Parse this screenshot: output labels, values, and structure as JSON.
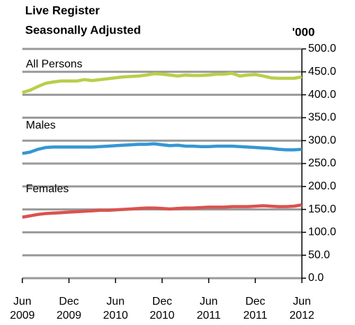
{
  "chart_data": {
    "type": "line",
    "title": "Live Register",
    "subtitle": "Seasonally Adjusted",
    "y_unit": "'000",
    "categories": [
      "Jun 2009",
      null,
      null,
      null,
      null,
      null,
      "Dec 2009",
      null,
      null,
      null,
      null,
      null,
      "Jun 2010",
      null,
      null,
      null,
      null,
      null,
      "Dec 2010",
      null,
      null,
      null,
      null,
      null,
      "Jun 2011",
      null,
      null,
      null,
      null,
      null,
      "Dec 2011",
      null,
      null,
      null,
      null,
      null,
      "Jun 2012"
    ],
    "series": [
      {
        "name": "All Persons",
        "color": "#b8cf4a",
        "values": [
          405,
          410,
          418,
          425,
          428,
          430,
          430,
          430,
          433,
          431,
          433,
          435,
          437,
          439,
          440,
          441,
          443,
          446,
          445,
          443,
          441,
          443,
          442,
          442,
          443,
          445,
          445,
          447,
          441,
          443,
          444,
          441,
          437,
          436,
          436,
          436,
          439
        ]
      },
      {
        "name": "Males",
        "color": "#3597d3",
        "values": [
          272,
          275,
          281,
          285,
          286,
          286,
          286,
          286,
          286,
          286,
          287,
          288,
          289,
          290,
          291,
          292,
          292,
          293,
          291,
          289,
          290,
          288,
          288,
          287,
          287,
          288,
          288,
          288,
          287,
          286,
          285,
          284,
          283,
          281,
          280,
          280,
          281
        ]
      },
      {
        "name": "Females",
        "color": "#d9534f",
        "values": [
          133,
          136,
          139,
          141,
          142,
          143,
          144,
          145,
          146,
          147,
          148,
          148,
          149,
          150,
          151,
          152,
          153,
          153,
          152,
          151,
          152,
          153,
          153,
          154,
          155,
          155,
          155,
          156,
          156,
          156,
          157,
          158,
          157,
          156,
          156,
          157,
          160
        ]
      }
    ],
    "ylim": [
      0,
      500
    ],
    "yticks": [
      {
        "value": 0,
        "label": "0.0"
      },
      {
        "value": 50,
        "label": "50.0"
      },
      {
        "value": 100,
        "label": "100.0"
      },
      {
        "value": 150,
        "label": "150.0"
      },
      {
        "value": 200,
        "label": "200.0"
      },
      {
        "value": 250,
        "label": "250.0"
      },
      {
        "value": 300,
        "label": "300.0"
      },
      {
        "value": 350,
        "label": "350.0"
      },
      {
        "value": 400,
        "label": "400.0"
      },
      {
        "value": 450,
        "label": "450.0"
      },
      {
        "value": 500,
        "label": "500.0"
      }
    ],
    "grid": true
  }
}
